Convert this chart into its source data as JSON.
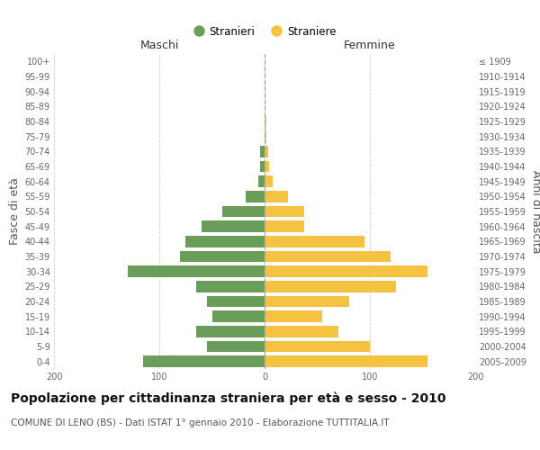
{
  "age_groups": [
    "0-4",
    "5-9",
    "10-14",
    "15-19",
    "20-24",
    "25-29",
    "30-34",
    "35-39",
    "40-44",
    "45-49",
    "50-54",
    "55-59",
    "60-64",
    "65-69",
    "70-74",
    "75-79",
    "80-84",
    "85-89",
    "90-94",
    "95-99",
    "100+"
  ],
  "birth_years": [
    "2005-2009",
    "2000-2004",
    "1995-1999",
    "1990-1994",
    "1985-1989",
    "1980-1984",
    "1975-1979",
    "1970-1974",
    "1965-1969",
    "1960-1964",
    "1955-1959",
    "1950-1954",
    "1945-1949",
    "1940-1944",
    "1935-1939",
    "1930-1934",
    "1925-1929",
    "1920-1924",
    "1915-1919",
    "1910-1914",
    "≤ 1909"
  ],
  "males": [
    115,
    55,
    65,
    50,
    55,
    65,
    130,
    80,
    75,
    60,
    40,
    18,
    6,
    4,
    4,
    0,
    0,
    0,
    0,
    0,
    0
  ],
  "females": [
    155,
    100,
    70,
    55,
    80,
    125,
    155,
    120,
    95,
    38,
    38,
    22,
    8,
    4,
    3,
    2,
    2,
    0,
    0,
    0,
    0
  ],
  "male_color": "#6a9d5a",
  "female_color": "#f5c242",
  "grid_color": "#cccccc",
  "bar_height": 0.75,
  "xlim": 200,
  "title": "Popolazione per cittadinanza straniera per età e sesso - 2010",
  "subtitle": "COMUNE DI LENO (BS) - Dati ISTAT 1° gennaio 2010 - Elaborazione TUTTITALIA.IT",
  "xlabel_left": "Maschi",
  "xlabel_right": "Femmine",
  "ylabel_left": "Fasce di età",
  "ylabel_right": "Anni di nascita",
  "legend_stranieri": "Stranieri",
  "legend_straniere": "Straniere",
  "title_fontsize": 10,
  "subtitle_fontsize": 7.5,
  "tick_fontsize": 7,
  "label_fontsize": 9
}
